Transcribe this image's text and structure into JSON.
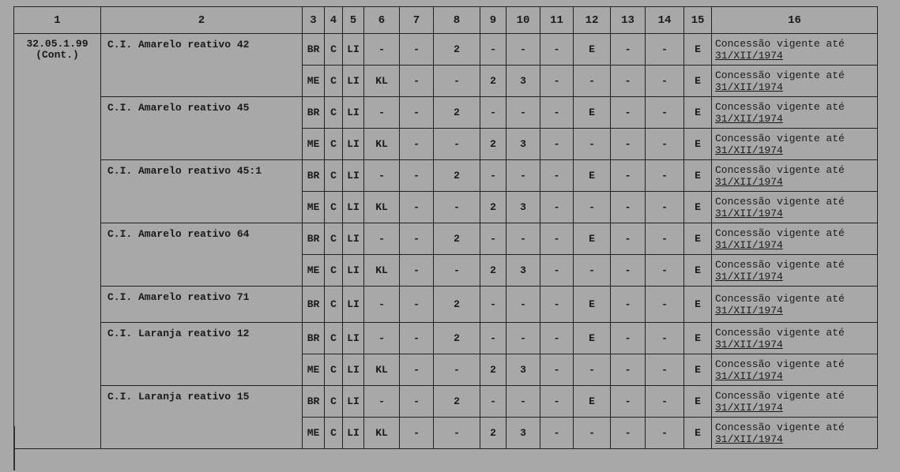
{
  "headers": [
    "1",
    "2",
    "3",
    "4",
    "5",
    "6",
    "7",
    "8",
    "9",
    "10",
    "11",
    "12",
    "13",
    "14",
    "15",
    "16"
  ],
  "code": {
    "line1": "32.05.1.99",
    "line2": "(Cont.)"
  },
  "groups": [
    {
      "name": "C.I. Amarelo reativo 42",
      "rows": [
        [
          "BR",
          "C",
          "LI",
          "-",
          "-",
          "2",
          "-",
          "-",
          "-",
          "E",
          "-",
          "-",
          "E"
        ],
        [
          "ME",
          "C",
          "LI",
          "KL",
          "-",
          "-",
          "2",
          "3",
          "-",
          "-",
          "-",
          "-",
          "E"
        ]
      ]
    },
    {
      "name": "C.I. Amarelo reativo 45",
      "rows": [
        [
          "BR",
          "C",
          "LI",
          "-",
          "-",
          "2",
          "-",
          "-",
          "-",
          "E",
          "-",
          "-",
          "E"
        ],
        [
          "ME",
          "C",
          "LI",
          "KL",
          "-",
          "-",
          "2",
          "3",
          "-",
          "-",
          "-",
          "-",
          "E"
        ]
      ]
    },
    {
      "name": "C.I. Amarelo reativo 45:1",
      "rows": [
        [
          "BR",
          "C",
          "LI",
          "-",
          "-",
          "2",
          "-",
          "-",
          "-",
          "E",
          "-",
          "-",
          "E"
        ],
        [
          "ME",
          "C",
          "LI",
          "KL",
          "-",
          "-",
          "2",
          "3",
          "-",
          "-",
          "-",
          "-",
          "E"
        ]
      ]
    },
    {
      "name": "C.I. Amarelo reativo 64",
      "rows": [
        [
          "BR",
          "C",
          "LI",
          "-",
          "-",
          "2",
          "-",
          "-",
          "-",
          "E",
          "-",
          "-",
          "E"
        ],
        [
          "ME",
          "C",
          "LI",
          "KL",
          "-",
          "-",
          "2",
          "3",
          "-",
          "-",
          "-",
          "-",
          "E"
        ]
      ]
    },
    {
      "name": "C.I. Amarelo reativo 71",
      "rows": [
        [
          "BR",
          "C",
          "LI",
          "-",
          "-",
          "2",
          "-",
          "-",
          "-",
          "E",
          "-",
          "-",
          "E"
        ]
      ]
    },
    {
      "name": "C.I. Laranja reativo 12",
      "rows": [
        [
          "BR",
          "C",
          "LI",
          "-",
          "-",
          "2",
          "-",
          "-",
          "-",
          "E",
          "-",
          "-",
          "E"
        ],
        [
          "ME",
          "C",
          "LI",
          "KL",
          "-",
          "-",
          "2",
          "3",
          "-",
          "-",
          "-",
          "-",
          "E"
        ]
      ]
    },
    {
      "name": "C.I. Laranja reativo 15",
      "rows": [
        [
          "BR",
          "C",
          "LI",
          "-",
          "-",
          "2",
          "-",
          "-",
          "-",
          "E",
          "-",
          "-",
          "E"
        ],
        [
          "ME",
          "C",
          "LI",
          "KL",
          "-",
          "-",
          "2",
          "3",
          "-",
          "-",
          "-",
          "-",
          "E"
        ]
      ]
    }
  ],
  "observation": {
    "line1": "Concessão vigente até",
    "line2": "31/XII/1974"
  }
}
